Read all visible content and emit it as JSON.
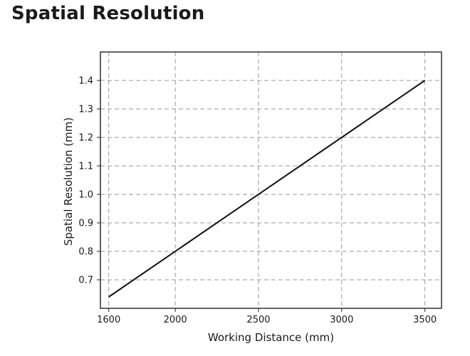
{
  "page": {
    "title": "Spatial Resolution"
  },
  "chart_data": {
    "type": "line",
    "title": "Spatial Resolution",
    "xlabel": "Working Distance (mm)",
    "ylabel": "Spatial Resolution (mm)",
    "xlim": [
      1550,
      3600
    ],
    "ylim": [
      0.6,
      1.5
    ],
    "x_ticks": [
      1600,
      2000,
      2500,
      3000,
      3500
    ],
    "y_ticks": [
      0.7,
      0.8,
      0.9,
      1.0,
      1.1,
      1.2,
      1.3,
      1.4
    ],
    "y_tick_labels": [
      "0.7",
      "0.8",
      "0.9",
      "1.0",
      "1.1",
      "1.2",
      "1.3",
      "1.4"
    ],
    "grid": true,
    "grid_style": "dashed",
    "series": [
      {
        "color": "#111111",
        "x": [
          1600,
          3500
        ],
        "y": [
          0.64,
          1.4
        ]
      }
    ]
  }
}
